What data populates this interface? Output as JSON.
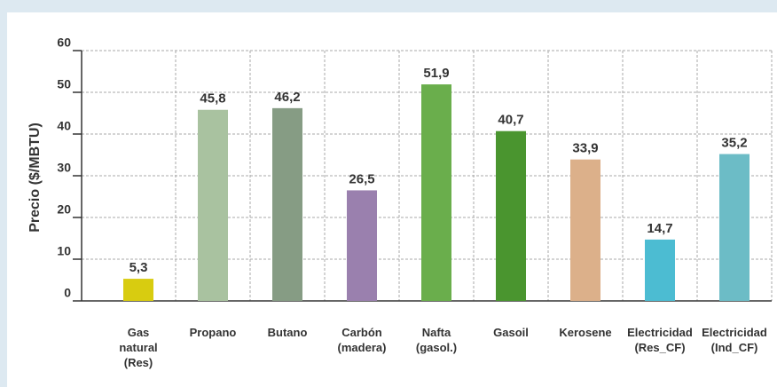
{
  "chart_data": {
    "type": "bar",
    "y_label": "Precio ($/MBTU)",
    "categories": [
      "Gas\nnatural\n(Res)",
      "Propano",
      "Butano",
      "Carbón\n(madera)",
      "Nafta\n(gasol.)",
      "Gasoil",
      "Kerosene",
      "Electricidad\n(Res_CF)",
      "Electricidad\n(Ind_CF)"
    ],
    "values": [
      5.3,
      45.8,
      46.2,
      26.5,
      51.9,
      40.7,
      33.9,
      14.7,
      35.2
    ],
    "value_labels": [
      "5,3",
      "45,8",
      "46,2",
      "26,5",
      "51,9",
      "40,7",
      "33,9",
      "14,7",
      "35,2"
    ],
    "colors": [
      "#d8cc10",
      "#a9c2a0",
      "#869c84",
      "#9a80ae",
      "#6aae4c",
      "#4a952f",
      "#dcb08a",
      "#4cbcd2",
      "#6cbcc6"
    ],
    "ylim": [
      0,
      60
    ],
    "yticks": [
      0,
      10,
      20,
      30,
      40,
      50,
      60
    ],
    "grid": true
  }
}
